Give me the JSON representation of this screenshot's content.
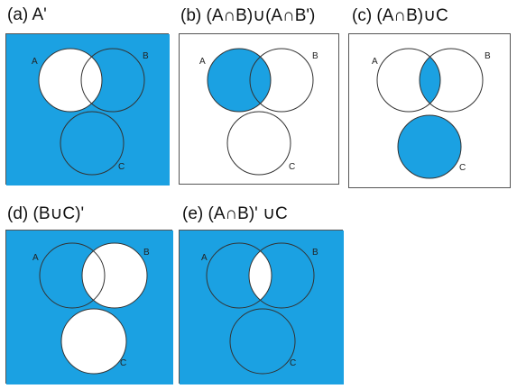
{
  "fill_color": "#1ba1e2",
  "background_color": "#ffffff",
  "panels": [
    {
      "id": "a",
      "title": "(a) A'",
      "shaded": "A'"
    },
    {
      "id": "b",
      "title": "(b) (A∩B)∪(A∩B')",
      "shaded": "(A∩B)∪(A∩B')"
    },
    {
      "id": "c",
      "title": "(c) (A∩B)∪C",
      "shaded": "(A∩B)∪C"
    },
    {
      "id": "d",
      "title": "(d) (B∪C)'",
      "shaded": "(B∪C)'"
    },
    {
      "id": "e",
      "title": "(e) (A∩B)' ∪C",
      "shaded": "(A∩B)'∪C"
    }
  ],
  "set_labels": {
    "a": "A",
    "b": "B",
    "c": "C"
  }
}
